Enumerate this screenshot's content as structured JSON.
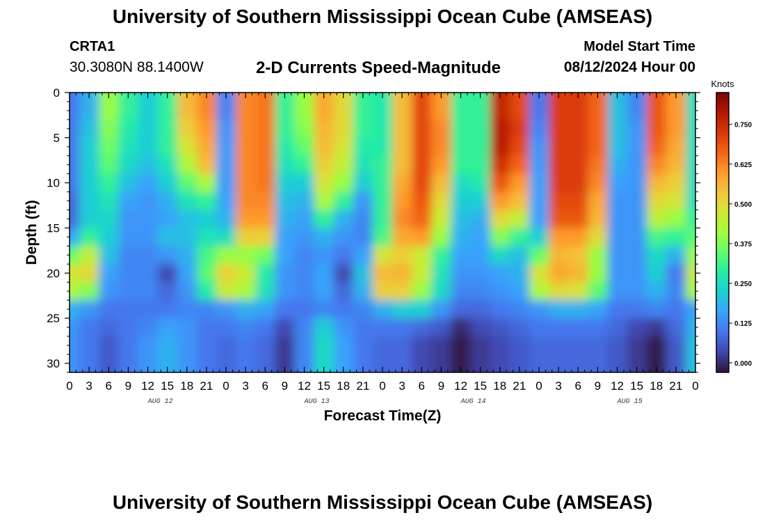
{
  "header": {
    "title": "University of Southern Mississippi Ocean Cube (AMSEAS)",
    "station": "CRTA1",
    "coordinates": "30.3080N  88.1400W",
    "subtitle": "2-D Currents Speed-Magnitude",
    "start_label": "Model Start Time",
    "start_value": "08/12/2024 Hour 00"
  },
  "footer": {
    "title": "University of Southern Mississippi Ocean Cube (AMSEAS)"
  },
  "chart_data": {
    "type": "heatmap",
    "title": "2-D Currents Speed-Magnitude",
    "xlabel": "Forecast Time(Z)",
    "ylabel": "Depth (ft)",
    "x_tick_labels": [
      "0",
      "3",
      "6",
      "9",
      "12",
      "15",
      "18",
      "21",
      "0",
      "3",
      "6",
      "9",
      "12",
      "15",
      "18",
      "21",
      "0",
      "3",
      "6",
      "9",
      "12",
      "15",
      "18",
      "21",
      "0",
      "3",
      "6",
      "9",
      "12",
      "15",
      "18",
      "21",
      "0"
    ],
    "day_labels": [
      "AUG 12",
      "AUG 13",
      "AUG 14",
      "AUG 15"
    ],
    "xlim_hours": [
      0,
      96
    ],
    "y_ticks": [
      0,
      5,
      10,
      15,
      20,
      25,
      30
    ],
    "ylim": [
      0,
      31
    ],
    "y_inverted": true,
    "colorbar": {
      "label": "Knots",
      "ticks": [
        "0.000",
        "0.125",
        "0.250",
        "0.375",
        "0.500",
        "0.625",
        "0.750"
      ],
      "range": [
        -0.03,
        0.85
      ]
    },
    "colormap": [
      "#30123b",
      "#4145ab",
      "#4675ed",
      "#39a2fc",
      "#1bcfd4",
      "#24eca6",
      "#61fc6c",
      "#a4fc3b",
      "#d1e834",
      "#f3c63a",
      "#fe9b2d",
      "#f36315",
      "#d93806",
      "#b11901",
      "#7a0403"
    ],
    "regions_note": "grid of current speed (knots) sampled at 3 h x ~1 ft",
    "grid": {
      "hours": [
        0,
        3,
        6,
        9,
        12,
        15,
        18,
        21,
        24,
        27,
        30,
        33,
        36,
        39,
        42,
        45,
        48,
        51,
        54,
        57,
        60,
        63,
        66,
        69,
        72,
        75,
        78,
        81,
        84,
        87,
        90,
        93,
        96
      ],
      "depths": [
        0,
        2,
        4,
        6,
        8,
        10,
        12,
        14,
        16,
        18,
        20,
        22,
        24,
        26,
        28,
        30
      ],
      "speed": [
        [
          0.1,
          0.18,
          0.4,
          0.3,
          0.22,
          0.3,
          0.55,
          0.62,
          0.12,
          0.62,
          0.64,
          0.3,
          0.4,
          0.58,
          0.5,
          0.3,
          0.28,
          0.55,
          0.7,
          0.6,
          0.3,
          0.3,
          0.76,
          0.7,
          0.1,
          0.72,
          0.72,
          0.66,
          0.2,
          0.12,
          0.68,
          0.6,
          0.25
        ],
        [
          0.1,
          0.18,
          0.4,
          0.3,
          0.22,
          0.3,
          0.55,
          0.62,
          0.12,
          0.62,
          0.64,
          0.3,
          0.4,
          0.58,
          0.5,
          0.3,
          0.28,
          0.55,
          0.7,
          0.6,
          0.3,
          0.3,
          0.76,
          0.7,
          0.1,
          0.72,
          0.72,
          0.66,
          0.2,
          0.12,
          0.68,
          0.6,
          0.25
        ],
        [
          0.1,
          0.2,
          0.38,
          0.28,
          0.22,
          0.3,
          0.52,
          0.6,
          0.14,
          0.62,
          0.64,
          0.3,
          0.38,
          0.56,
          0.5,
          0.3,
          0.28,
          0.55,
          0.7,
          0.62,
          0.3,
          0.3,
          0.78,
          0.72,
          0.12,
          0.72,
          0.72,
          0.66,
          0.2,
          0.14,
          0.68,
          0.6,
          0.25
        ],
        [
          0.1,
          0.22,
          0.36,
          0.26,
          0.22,
          0.3,
          0.48,
          0.58,
          0.15,
          0.62,
          0.64,
          0.28,
          0.35,
          0.55,
          0.48,
          0.28,
          0.28,
          0.55,
          0.7,
          0.62,
          0.3,
          0.3,
          0.78,
          0.7,
          0.14,
          0.72,
          0.72,
          0.66,
          0.2,
          0.14,
          0.66,
          0.58,
          0.25
        ],
        [
          0.1,
          0.22,
          0.34,
          0.24,
          0.2,
          0.26,
          0.42,
          0.55,
          0.15,
          0.62,
          0.64,
          0.26,
          0.3,
          0.52,
          0.45,
          0.26,
          0.3,
          0.55,
          0.7,
          0.6,
          0.3,
          0.3,
          0.74,
          0.66,
          0.15,
          0.72,
          0.72,
          0.64,
          0.18,
          0.14,
          0.62,
          0.56,
          0.25
        ],
        [
          0.1,
          0.22,
          0.3,
          0.2,
          0.16,
          0.22,
          0.34,
          0.42,
          0.15,
          0.62,
          0.64,
          0.22,
          0.22,
          0.48,
          0.4,
          0.22,
          0.3,
          0.58,
          0.7,
          0.55,
          0.25,
          0.28,
          0.68,
          0.6,
          0.16,
          0.72,
          0.72,
          0.62,
          0.16,
          0.14,
          0.56,
          0.52,
          0.25
        ],
        [
          0.08,
          0.22,
          0.26,
          0.16,
          0.14,
          0.18,
          0.26,
          0.3,
          0.16,
          0.62,
          0.62,
          0.2,
          0.18,
          0.42,
          0.3,
          0.14,
          0.3,
          0.6,
          0.68,
          0.5,
          0.22,
          0.22,
          0.6,
          0.55,
          0.16,
          0.7,
          0.7,
          0.58,
          0.14,
          0.14,
          0.5,
          0.48,
          0.25
        ],
        [
          0.08,
          0.22,
          0.24,
          0.14,
          0.14,
          0.16,
          0.2,
          0.22,
          0.18,
          0.6,
          0.6,
          0.18,
          0.16,
          0.3,
          0.18,
          0.12,
          0.3,
          0.62,
          0.66,
          0.46,
          0.2,
          0.18,
          0.5,
          0.45,
          0.16,
          0.68,
          0.68,
          0.56,
          0.14,
          0.14,
          0.44,
          0.4,
          0.3
        ],
        [
          0.16,
          0.3,
          0.22,
          0.14,
          0.14,
          0.2,
          0.2,
          0.26,
          0.25,
          0.52,
          0.52,
          0.16,
          0.14,
          0.18,
          0.14,
          0.12,
          0.32,
          0.58,
          0.6,
          0.4,
          0.18,
          0.16,
          0.38,
          0.3,
          0.22,
          0.6,
          0.6,
          0.5,
          0.14,
          0.14,
          0.32,
          0.3,
          0.34
        ],
        [
          0.35,
          0.45,
          0.2,
          0.12,
          0.12,
          0.14,
          0.18,
          0.32,
          0.4,
          0.4,
          0.36,
          0.16,
          0.12,
          0.14,
          0.1,
          0.16,
          0.48,
          0.52,
          0.46,
          0.3,
          0.16,
          0.16,
          0.24,
          0.2,
          0.35,
          0.56,
          0.54,
          0.4,
          0.14,
          0.14,
          0.24,
          0.18,
          0.4
        ],
        [
          0.48,
          0.5,
          0.16,
          0.12,
          0.12,
          0.04,
          0.16,
          0.34,
          0.52,
          0.46,
          0.28,
          0.14,
          0.12,
          0.16,
          0.04,
          0.2,
          0.55,
          0.56,
          0.46,
          0.26,
          0.14,
          0.14,
          0.16,
          0.18,
          0.48,
          0.58,
          0.56,
          0.4,
          0.14,
          0.14,
          0.22,
          0.1,
          0.46
        ],
        [
          0.42,
          0.38,
          0.14,
          0.12,
          0.12,
          0.08,
          0.14,
          0.28,
          0.46,
          0.42,
          0.26,
          0.14,
          0.12,
          0.16,
          0.08,
          0.18,
          0.52,
          0.52,
          0.4,
          0.24,
          0.12,
          0.12,
          0.14,
          0.16,
          0.42,
          0.5,
          0.48,
          0.34,
          0.14,
          0.14,
          0.18,
          0.12,
          0.42
        ],
        [
          0.18,
          0.14,
          0.1,
          0.1,
          0.1,
          0.1,
          0.12,
          0.12,
          0.14,
          0.18,
          0.16,
          0.1,
          0.1,
          0.12,
          0.1,
          0.12,
          0.18,
          0.22,
          0.22,
          0.14,
          0.08,
          0.08,
          0.1,
          0.12,
          0.14,
          0.18,
          0.18,
          0.16,
          0.1,
          0.1,
          0.12,
          0.1,
          0.16
        ],
        [
          0.14,
          0.1,
          0.08,
          0.1,
          0.12,
          0.16,
          0.14,
          0.1,
          0.1,
          0.12,
          0.1,
          0.04,
          0.12,
          0.22,
          0.14,
          0.1,
          0.1,
          0.1,
          0.08,
          0.06,
          0.0,
          0.04,
          0.06,
          0.08,
          0.1,
          0.1,
          0.1,
          0.1,
          0.08,
          0.04,
          0.02,
          0.08,
          0.18
        ],
        [
          0.14,
          0.1,
          0.06,
          0.1,
          0.14,
          0.18,
          0.14,
          0.1,
          0.08,
          0.1,
          0.08,
          0.02,
          0.12,
          0.24,
          0.16,
          0.1,
          0.08,
          0.08,
          0.04,
          0.02,
          -0.02,
          0.02,
          0.04,
          0.06,
          0.08,
          0.08,
          0.08,
          0.08,
          0.06,
          0.02,
          -0.02,
          0.06,
          0.2
        ],
        [
          0.14,
          0.1,
          0.06,
          0.1,
          0.14,
          0.18,
          0.14,
          0.1,
          0.08,
          0.1,
          0.08,
          0.02,
          0.12,
          0.24,
          0.16,
          0.1,
          0.08,
          0.08,
          0.04,
          0.02,
          -0.02,
          0.02,
          0.04,
          0.06,
          0.08,
          0.08,
          0.08,
          0.08,
          0.06,
          0.02,
          -0.02,
          0.06,
          0.2
        ]
      ]
    }
  }
}
